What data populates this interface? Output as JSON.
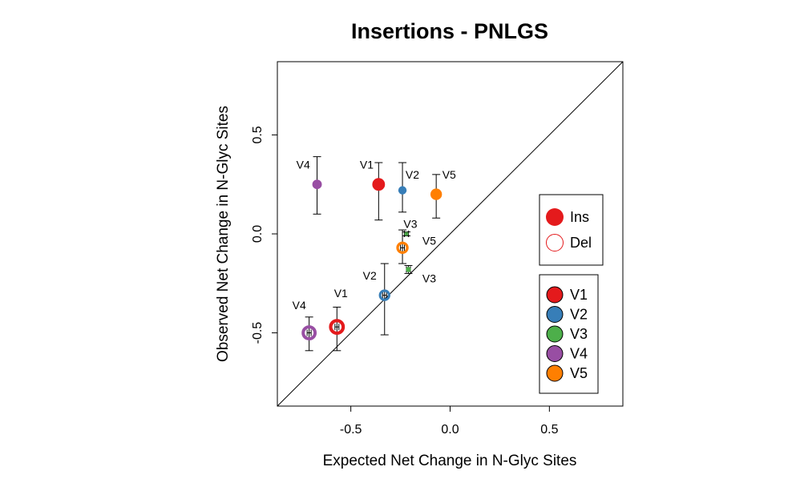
{
  "chart_data": {
    "type": "scatter",
    "title": "Insertions - PNLGS",
    "xlabel": "Expected Net Change in N-Glyc Sites",
    "ylabel": "Observed Net Change in N-Glyc Sites",
    "xlim": [
      -0.87,
      0.87
    ],
    "ylim": [
      -0.87,
      0.87
    ],
    "xticks": [
      -0.5,
      0.0,
      0.5
    ],
    "yticks": [
      -0.5,
      0.0,
      0.5
    ],
    "xtick_labels": [
      "-0.5",
      "0.0",
      "0.5"
    ],
    "ytick_labels": [
      "-0.5",
      "0.0",
      "0.5"
    ],
    "reference_line": "y = x",
    "grid": false,
    "colors": {
      "V1": "#E41A1C",
      "V2": "#377EB8",
      "V3": "#4DAF4A",
      "V4": "#984EA3",
      "V5": "#FF7F00"
    },
    "series": [
      {
        "name": "Ins",
        "marker": "filled",
        "points": [
          {
            "region": "V1",
            "x": -0.36,
            "y": 0.25,
            "y_low": 0.07,
            "y_high": 0.36,
            "x_err": 0.01,
            "size": 0.032
          },
          {
            "region": "V2",
            "x": -0.24,
            "y": 0.22,
            "y_low": 0.11,
            "y_high": 0.36,
            "x_err": 0.01,
            "size": 0.021
          },
          {
            "region": "V3",
            "x": -0.21,
            "y": -0.18,
            "y_low": -0.2,
            "y_high": -0.16,
            "x_err": 0.01,
            "size": 0.013
          },
          {
            "region": "V4",
            "x": -0.67,
            "y": 0.25,
            "y_low": 0.1,
            "y_high": 0.39,
            "x_err": 0.01,
            "size": 0.024
          },
          {
            "region": "V5",
            "x": -0.07,
            "y": 0.2,
            "y_low": 0.08,
            "y_high": 0.3,
            "x_err": 0.01,
            "size": 0.029
          }
        ]
      },
      {
        "name": "Del",
        "marker": "open",
        "points": [
          {
            "region": "V1",
            "x": -0.57,
            "y": -0.47,
            "y_low": -0.59,
            "y_high": -0.37,
            "x_err": 0.01,
            "size": 0.04
          },
          {
            "region": "V2",
            "x": -0.33,
            "y": -0.31,
            "y_low": -0.51,
            "y_high": -0.15,
            "x_err": 0.01,
            "size": 0.029
          },
          {
            "region": "V3",
            "x": -0.22,
            "y": 0.0,
            "y_low": -0.01,
            "y_high": 0.01,
            "x_err": 0.01,
            "size": 0.01
          },
          {
            "region": "V4",
            "x": -0.71,
            "y": -0.5,
            "y_low": -0.59,
            "y_high": -0.42,
            "x_err": 0.01,
            "size": 0.038
          },
          {
            "region": "V5",
            "x": -0.24,
            "y": -0.07,
            "y_low": -0.15,
            "y_high": 0.02,
            "x_err": 0.01,
            "size": 0.031
          }
        ]
      }
    ],
    "point_labels": [
      {
        "text": "V1",
        "x": -0.42,
        "y": 0.35
      },
      {
        "text": "V2",
        "x": -0.19,
        "y": 0.3
      },
      {
        "text": "V5",
        "x": -0.005,
        "y": 0.3
      },
      {
        "text": "V4",
        "x": -0.74,
        "y": 0.35
      },
      {
        "text": "V3",
        "x": -0.2,
        "y": 0.05
      },
      {
        "text": "V5",
        "x": -0.105,
        "y": -0.035
      },
      {
        "text": "V3",
        "x": -0.105,
        "y": -0.225
      },
      {
        "text": "V2",
        "x": -0.405,
        "y": -0.21
      },
      {
        "text": "V1",
        "x": -0.55,
        "y": -0.3
      },
      {
        "text": "V4",
        "x": -0.76,
        "y": -0.36
      }
    ],
    "legend_type": {
      "position": "right",
      "entries": [
        {
          "label": "Ins",
          "marker": "filled",
          "color": "#E41A1C"
        },
        {
          "label": "Del",
          "marker": "open",
          "color": "#E41A1C"
        }
      ]
    },
    "legend_region": {
      "position": "bottom-right",
      "entries": [
        {
          "label": "V1",
          "color": "#E41A1C"
        },
        {
          "label": "V2",
          "color": "#377EB8"
        },
        {
          "label": "V3",
          "color": "#4DAF4A"
        },
        {
          "label": "V4",
          "color": "#984EA3"
        },
        {
          "label": "V5",
          "color": "#FF7F00"
        }
      ]
    }
  }
}
